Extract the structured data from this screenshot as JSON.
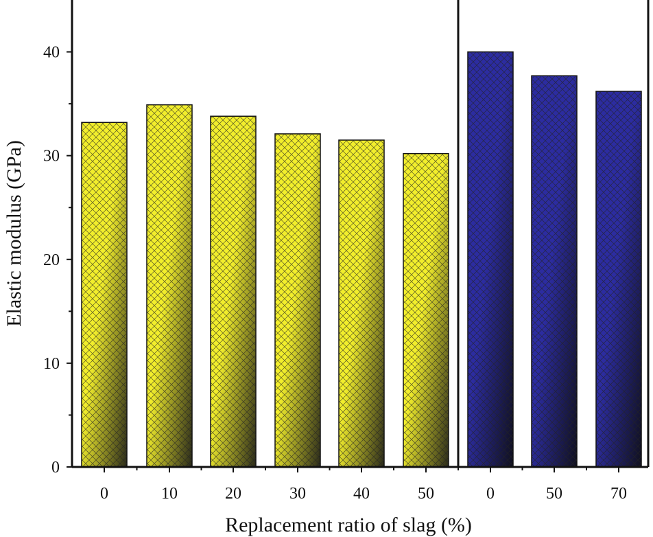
{
  "chart_data": {
    "type": "bar",
    "title": "",
    "xlabel": "Replacement ratio of slag (%)",
    "ylabel": "Elastic modulus (GPa)",
    "ylim": [
      0,
      45
    ],
    "yticks": [
      0,
      10,
      20,
      30,
      40
    ],
    "grid": false,
    "categories": [
      "0",
      "10",
      "20",
      "30",
      "40",
      "50",
      "0",
      "50",
      "70"
    ],
    "values": [
      33.2,
      34.9,
      33.8,
      32.1,
      31.5,
      30.2,
      40.0,
      37.7,
      36.2
    ],
    "groups": [
      {
        "name": "group-1",
        "color": "#f2ee2c",
        "shade": "#2a2a1a",
        "start": 0,
        "count": 6
      },
      {
        "name": "group-2",
        "color": "#2c2ca0",
        "shade": "#10101e",
        "start": 6,
        "count": 3
      }
    ]
  }
}
